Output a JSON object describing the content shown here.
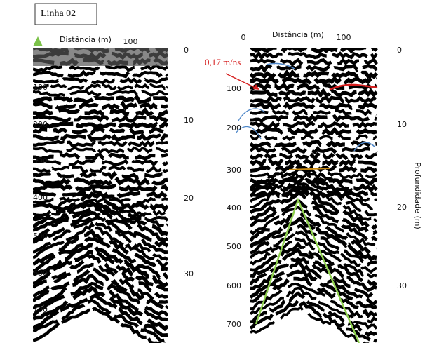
{
  "figure": {
    "label": "Linha 02",
    "left_panel": {
      "x_axis_label": "Distância (m)",
      "x_ticks": [
        100
      ],
      "time_ticks": [
        100,
        200,
        300,
        400,
        500,
        600,
        700
      ],
      "depth_ticks": [
        0,
        10,
        20,
        30
      ]
    },
    "right_panel": {
      "x_axis_label": "Distância (m)",
      "x_ticks": [
        0,
        100
      ],
      "time_ticks": [
        100,
        200,
        300,
        400,
        500,
        600,
        700
      ],
      "depth_ticks": [
        0,
        10,
        20,
        30
      ],
      "depth_axis_label": "Profundidade (m)",
      "annotation": "0,17 m/ns"
    }
  }
}
